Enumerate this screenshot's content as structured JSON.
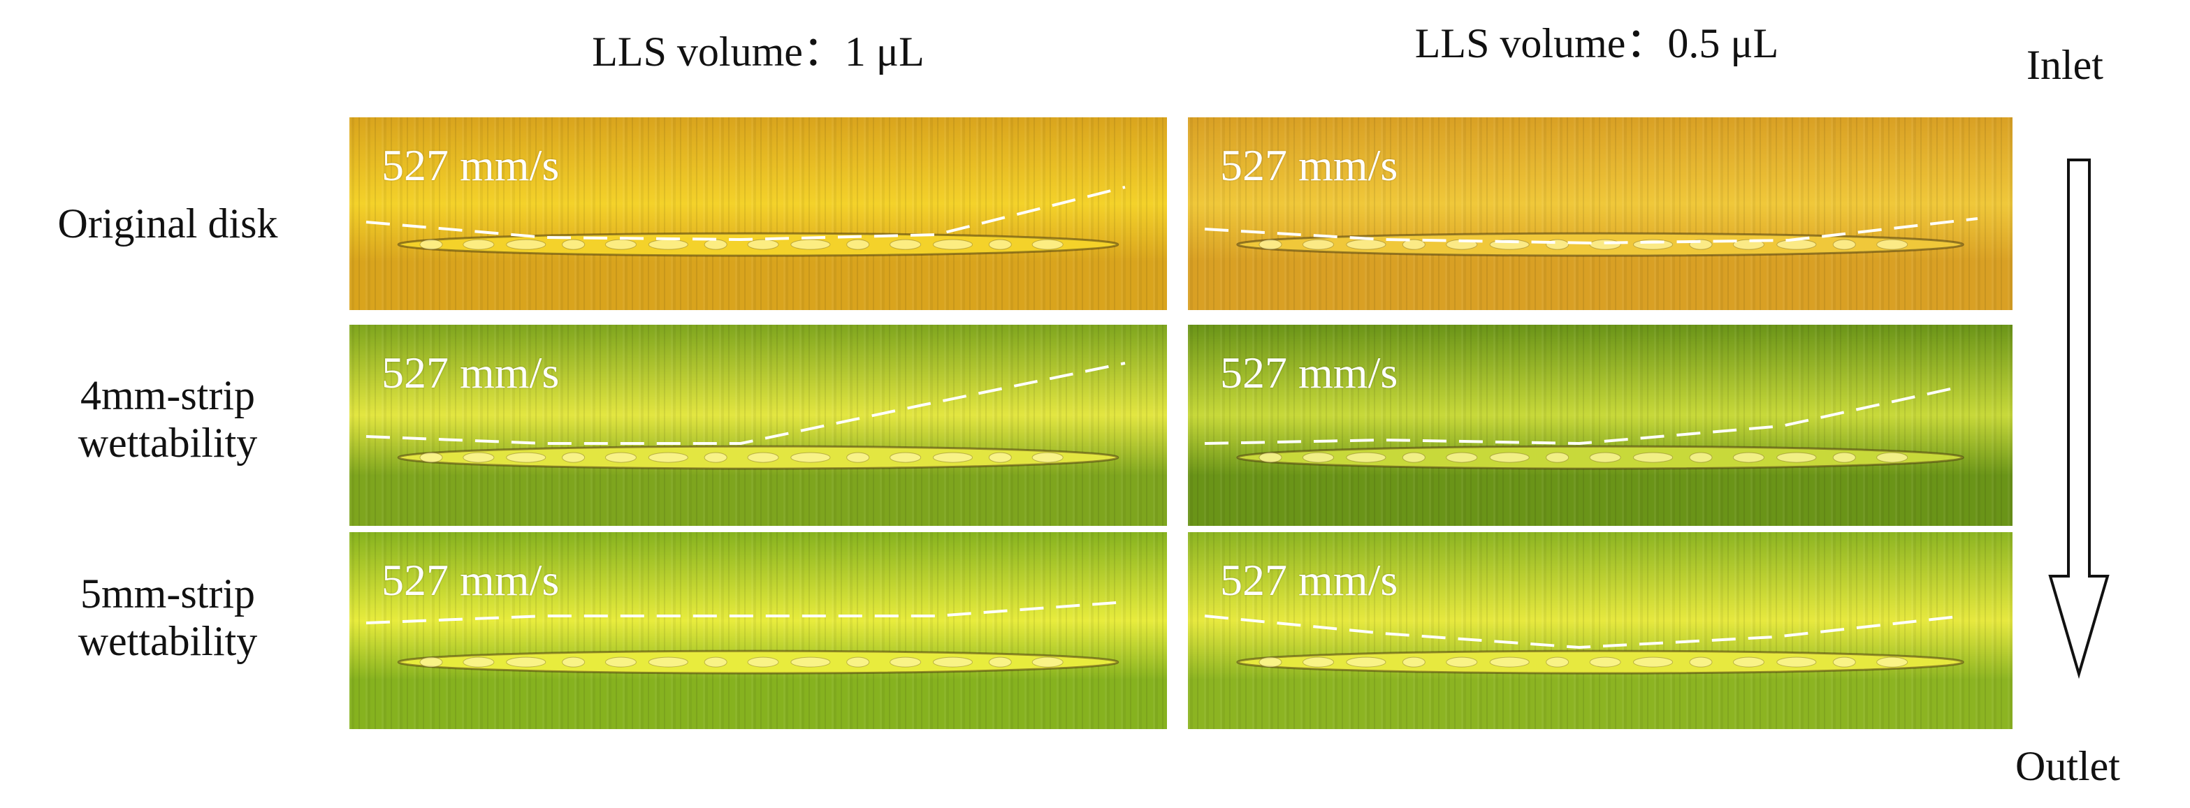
{
  "columns": [
    {
      "label": "LLS volume：1 μL"
    },
    {
      "label": "LLS volume：0.5 μL"
    }
  ],
  "rows": [
    {
      "label_lines": [
        "Original disk"
      ]
    },
    {
      "label_lines": [
        "4mm-strip",
        "wettability"
      ]
    },
    {
      "label_lines": [
        "5mm-strip",
        "wettability"
      ]
    }
  ],
  "flow": {
    "inlet": "Inlet",
    "outlet": "Outlet",
    "direction_icon": "down-arrow-icon"
  },
  "panels": [
    {
      "row": 0,
      "col": 0,
      "speed": "527 mm/s",
      "base_color": "#d9a41d",
      "band_color": "#f4d22a"
    },
    {
      "row": 0,
      "col": 1,
      "speed": "527 mm/s",
      "base_color": "#d9a024",
      "band_color": "#f0c83a"
    },
    {
      "row": 1,
      "col": 0,
      "speed": "527 mm/s",
      "base_color": "#7ea51e",
      "band_color": "#e3e641"
    },
    {
      "row": 1,
      "col": 1,
      "speed": "527 mm/s",
      "base_color": "#6a9418",
      "band_color": "#c8d93a"
    },
    {
      "row": 2,
      "col": 0,
      "speed": "527 mm/s",
      "base_color": "#86b21f",
      "band_color": "#e8ec3d"
    },
    {
      "row": 2,
      "col": 1,
      "speed": "527 mm/s",
      "base_color": "#8cb422",
      "band_color": "#e7e93f"
    }
  ]
}
